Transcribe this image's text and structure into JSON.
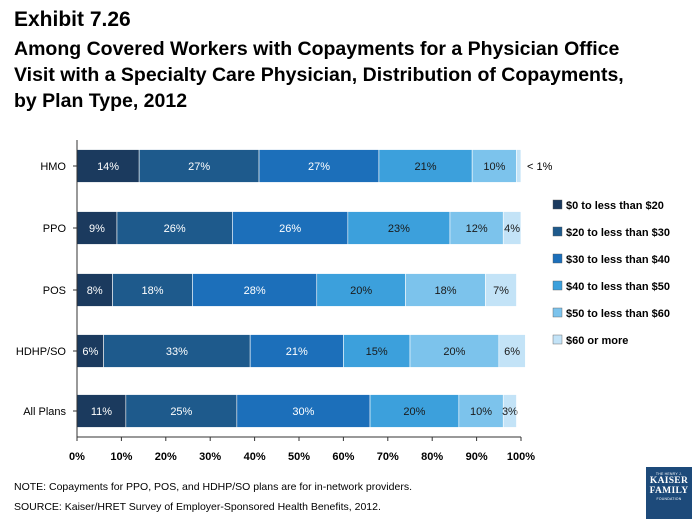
{
  "header": {
    "exhibit": "Exhibit 7.26",
    "title_lines": [
      "Among Covered Workers with Copayments for a Physician Office",
      "Visit with a Specialty Care Physician, Distribution of Copayments,",
      "by Plan Type, 2012"
    ]
  },
  "chart_data": {
    "type": "bar",
    "orientation": "horizontal",
    "stacked": true,
    "categories": [
      "HMO",
      "PPO",
      "POS",
      "HDHP/SO",
      "All Plans"
    ],
    "series": [
      {
        "name": "$0 to less than $20",
        "color": "#1b3a5e",
        "values": [
          14,
          9,
          8,
          6,
          11
        ],
        "labels": [
          "14%",
          "9%",
          "8%",
          "6%",
          "11%"
        ]
      },
      {
        "name": "$20 to less than $30",
        "color": "#1e5a8c",
        "values": [
          27,
          26,
          18,
          33,
          25
        ],
        "labels": [
          "27%",
          "26%",
          "18%",
          "33%",
          "25%"
        ]
      },
      {
        "name": "$30 to less than $40",
        "color": "#1c6fba",
        "values": [
          27,
          26,
          28,
          21,
          30
        ],
        "labels": [
          "27%",
          "26%",
          "28%",
          "21%",
          "30%"
        ]
      },
      {
        "name": "$40 to less than $50",
        "color": "#3ca0dc",
        "values": [
          21,
          23,
          20,
          15,
          20
        ],
        "labels": [
          "21%",
          "23%",
          "20%",
          "15%",
          "20%"
        ]
      },
      {
        "name": "$50 to less than $60",
        "color": "#7cc3ec",
        "values": [
          10,
          12,
          18,
          20,
          10
        ],
        "labels": [
          "10%",
          "12%",
          "18%",
          "20%",
          "10%"
        ]
      },
      {
        "name": "$60 or more",
        "color": "#c3e3f7",
        "values": [
          1,
          4,
          7,
          6,
          3
        ],
        "labels": [
          "",
          "4%",
          "7%",
          "6%",
          "3%"
        ]
      }
    ],
    "annotations": [
      {
        "category": "HMO",
        "text": "< 1%"
      }
    ],
    "xlim": [
      0,
      100
    ],
    "x_ticks": [
      "0%",
      "10%",
      "20%",
      "30%",
      "40%",
      "50%",
      "60%",
      "70%",
      "80%",
      "90%",
      "100%"
    ],
    "legend_position": "right",
    "grid": false
  },
  "footer": {
    "note": "NOTE: Copayments for PPO, POS, and HDHP/SO plans are for in-network providers.",
    "source": "SOURCE:  Kaiser/HRET Survey of Employer-Sponsored Health Benefits, 2012."
  },
  "logo": {
    "top_line": "THE HENRY J.",
    "lines": [
      "KAISER",
      "FAMILY"
    ],
    "bottom_line": "FOUNDATION"
  }
}
